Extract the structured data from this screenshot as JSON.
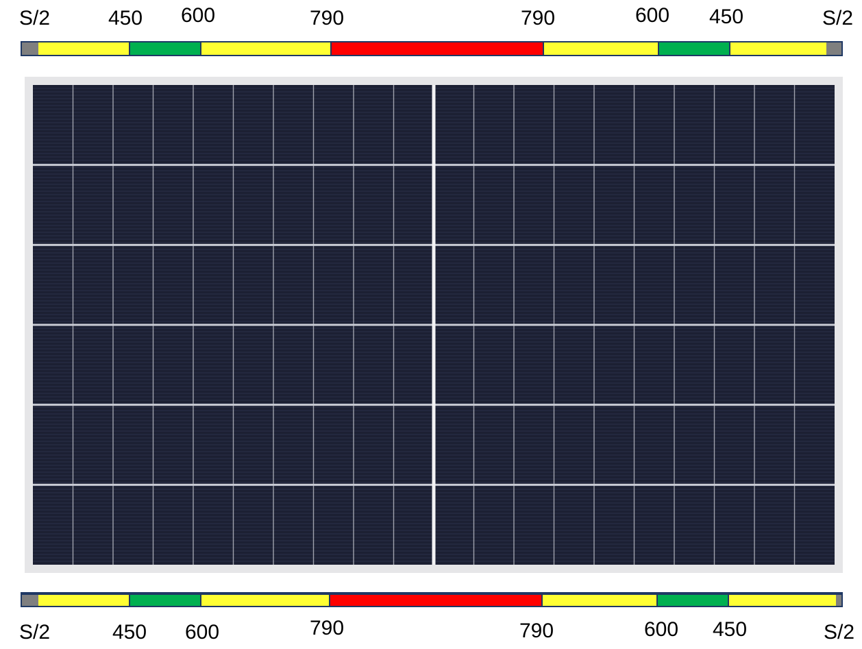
{
  "top_labels": {
    "left_end": "S/2",
    "left_outer": "450",
    "left_inner": "600",
    "left_center": "790",
    "right_center": "790",
    "right_inner": "600",
    "right_outer": "450",
    "right_end": "S/2"
  },
  "bottom_labels": {
    "left_end": "S/2",
    "left_outer": "450",
    "left_inner": "600",
    "left_center": "790",
    "right_center": "790",
    "right_inner": "600",
    "right_outer": "450",
    "right_end": "S/2"
  },
  "colors": {
    "end_cap": "#7f7f7f",
    "yellow_zone": "#ffff33",
    "green_zone": "#00b050",
    "red_zone": "#ff0000",
    "rail_border": "#1f3864",
    "panel_cell": "#1c2033",
    "panel_frame": "#e6e6e8",
    "panel_grid": "#c9cbd4"
  }
}
